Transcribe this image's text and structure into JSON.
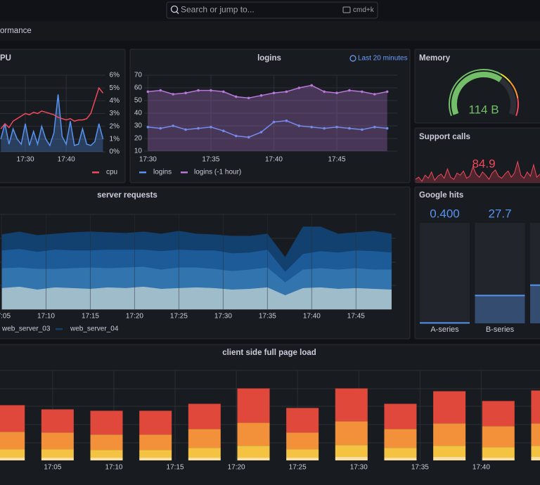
{
  "header": {
    "search_placeholder": "Search or jump to...",
    "shortcut": "cmd+k",
    "breadcrumb": "ormance"
  },
  "panels": {
    "cpu": {
      "title": "PU",
      "type": "line",
      "x": [
        1044,
        1045,
        1046,
        1047,
        1048,
        1049,
        1050,
        1051,
        1052,
        1053,
        1054,
        1055,
        1056,
        1057,
        1058,
        1059,
        1060,
        1061,
        1062,
        1063,
        1064,
        1065,
        1066,
        1067,
        1068,
        1069
      ],
      "xlim": [
        1043.8,
        1069.6
      ],
      "xticks": [
        {
          "value": 1050,
          "label": "17:30"
        },
        {
          "value": 1060,
          "label": "17:40"
        }
      ],
      "ylim": [
        0,
        6
      ],
      "yticks": [
        {
          "value": 0,
          "label": "0%"
        },
        {
          "value": 1,
          "label": "1%"
        },
        {
          "value": 2,
          "label": "2%"
        },
        {
          "value": 3,
          "label": "3%"
        },
        {
          "value": 4,
          "label": "4%"
        },
        {
          "value": 5,
          "label": "5%"
        },
        {
          "value": 6,
          "label": "6%"
        }
      ],
      "series": [
        {
          "color": "#5794f2",
          "fill": true,
          "values": [
            1.0,
            2.2,
            0.6,
            1.8,
            1.0,
            0.6,
            2.2,
            0.5,
            1.6,
            0.6,
            2.0,
            1.0,
            0.5,
            1.5,
            4.5,
            1.2,
            0.6,
            2.4,
            0.5,
            0.6,
            1.8,
            0.6,
            0.5,
            0.8,
            2.2,
            1.0
          ]
        },
        {
          "name": "cpu",
          "color": "#f2495c",
          "fill": false,
          "values": [
            1.8,
            2.2,
            1.9,
            2.4,
            2.6,
            2.8,
            3.0,
            2.9,
            3.1,
            3.0,
            3.2,
            3.1,
            3.0,
            2.9,
            2.7,
            2.6,
            2.5,
            2.6,
            2.4,
            2.5,
            2.5,
            2.6,
            3.0,
            4.0,
            5.0,
            4.6
          ]
        }
      ]
    },
    "logins": {
      "title": "logins",
      "time_range": "Last 20 minutes",
      "type": "line",
      "x": [
        1050,
        1051,
        1052,
        1053,
        1054,
        1055,
        1056,
        1057,
        1058,
        1059,
        1060,
        1061,
        1062,
        1063,
        1064,
        1065,
        1066,
        1067,
        1068,
        1069
      ],
      "xlim": [
        1049.7,
        1069.8
      ],
      "xticks": [
        {
          "value": 1050,
          "label": "17:30"
        },
        {
          "value": 1055,
          "label": "17:35"
        },
        {
          "value": 1060,
          "label": "17:40"
        },
        {
          "value": 1065,
          "label": "17:45"
        }
      ],
      "ylim": [
        10,
        70
      ],
      "yticks": [
        10,
        20,
        30,
        40,
        50,
        60,
        70
      ],
      "series": [
        {
          "name": "logins",
          "color": "#5794f2",
          "fill": false,
          "values": [
            29,
            28,
            30,
            27,
            28,
            29,
            26,
            22,
            21,
            25,
            33,
            34,
            30,
            29,
            28,
            29,
            28,
            27,
            29,
            28
          ]
        },
        {
          "name": "logins (-1 hour)",
          "color": "#b877d9",
          "fill": true,
          "values": [
            57,
            58,
            55,
            56,
            58,
            58,
            57,
            53,
            52,
            54,
            56,
            57,
            60,
            62,
            57,
            56,
            58,
            57,
            55,
            57
          ]
        }
      ]
    },
    "memory": {
      "title": "Memory",
      "gauge_value": "114 B"
    },
    "support_calls": {
      "title": "Support calls",
      "stat_value": "84.9",
      "color": "#f2495c",
      "sparkline": [
        78,
        80,
        76,
        82,
        79,
        85,
        77,
        81,
        83,
        79,
        88,
        80,
        78,
        84,
        82,
        86,
        79,
        81,
        90,
        83,
        80,
        85,
        82,
        78,
        84,
        87,
        81,
        79,
        83,
        86,
        80,
        84,
        95,
        82,
        79,
        85,
        81,
        92,
        80,
        83
      ]
    },
    "server_requests": {
      "title": "server requests",
      "type": "stacked-area",
      "x": [
        1025,
        1027,
        1029,
        1031,
        1033,
        1035,
        1037,
        1039,
        1041,
        1043,
        1045,
        1047,
        1049,
        1051,
        1053,
        1055,
        1057,
        1059,
        1061,
        1063,
        1065,
        1067,
        1069
      ],
      "xlim": [
        1024.8,
        1069.5
      ],
      "xticks": [
        {
          "value": 1025,
          "label": "17:05"
        },
        {
          "value": 1030,
          "label": "17:10"
        },
        {
          "value": 1035,
          "label": "17:15"
        },
        {
          "value": 1040,
          "label": "17:20"
        },
        {
          "value": 1045,
          "label": "17:25"
        },
        {
          "value": 1050,
          "label": "17:30"
        },
        {
          "value": 1055,
          "label": "17:35"
        },
        {
          "value": 1060,
          "label": "17:40"
        },
        {
          "value": 1065,
          "label": "17:45"
        }
      ],
      "series": [
        {
          "color": "#9fbccb",
          "values": [
            30,
            32,
            28,
            31,
            30,
            29,
            31,
            30,
            32,
            29,
            30,
            31,
            30,
            28,
            29,
            31,
            20,
            30,
            31,
            29,
            30,
            29,
            28
          ]
        },
        {
          "color": "#3274ad",
          "values": [
            28,
            27,
            29,
            26,
            28,
            30,
            27,
            29,
            28,
            27,
            29,
            28,
            27,
            26,
            27,
            28,
            18,
            26,
            27,
            27,
            28,
            27,
            28
          ]
        },
        {
          "name": "web_server_03",
          "color": "#1d5b98",
          "values": [
            25,
            26,
            24,
            27,
            25,
            24,
            26,
            25,
            24,
            26,
            25,
            24,
            26,
            25,
            24,
            25,
            15,
            22,
            24,
            24,
            25,
            26,
            24
          ]
        },
        {
          "name": "web_server_04",
          "color": "#12406f",
          "values": [
            22,
            24,
            23,
            22,
            25,
            26,
            24,
            23,
            25,
            24,
            26,
            23,
            22,
            24,
            23,
            22,
            20,
            38,
            34,
            26,
            25,
            28,
            26
          ]
        }
      ]
    },
    "google_hits": {
      "title": "Google hits",
      "type": "bar-gauge",
      "max": 100,
      "categories": [
        "A-series",
        "B-series",
        null
      ],
      "values": [
        0.4,
        27.7,
        38
      ],
      "value_labels": [
        "0.400",
        "27.7",
        null
      ],
      "color": "#5794f2"
    },
    "client_load": {
      "title": "client side full page load",
      "type": "stacked-bar",
      "x": [
        1021.4,
        1025.4,
        1029.4,
        1033.4,
        1037.4,
        1041.4,
        1045.4,
        1049.4,
        1053.4,
        1057.4,
        1061.4,
        1065.4
      ],
      "xlim": [
        1020.7,
        1064.8
      ],
      "xticks": [
        {
          "value": 1025,
          "label": "17:05"
        },
        {
          "value": 1030,
          "label": "17:10"
        },
        {
          "value": 1035,
          "label": "17:15"
        },
        {
          "value": 1040,
          "label": "17:20"
        },
        {
          "value": 1045,
          "label": "17:25"
        },
        {
          "value": 1050,
          "label": "17:30"
        },
        {
          "value": 1055,
          "label": "17:35"
        },
        {
          "value": 1060,
          "label": "17:40"
        }
      ],
      "series": [
        {
          "color": "#f9e0a2",
          "values": [
            4,
            4,
            4,
            4,
            4,
            4,
            4,
            5,
            4,
            5,
            4,
            5
          ]
        },
        {
          "color": "#f5c342",
          "values": [
            12,
            12,
            11,
            11,
            14,
            17,
            12,
            17,
            14,
            16,
            15,
            16
          ]
        },
        {
          "color": "#f2913a",
          "values": [
            25,
            24,
            22,
            22,
            27,
            33,
            24,
            34,
            27,
            32,
            30,
            32
          ]
        },
        {
          "color": "#e0483c",
          "values": [
            38,
            33,
            34,
            34,
            36,
            49,
            35,
            47,
            36,
            46,
            36,
            47
          ]
        }
      ]
    }
  }
}
